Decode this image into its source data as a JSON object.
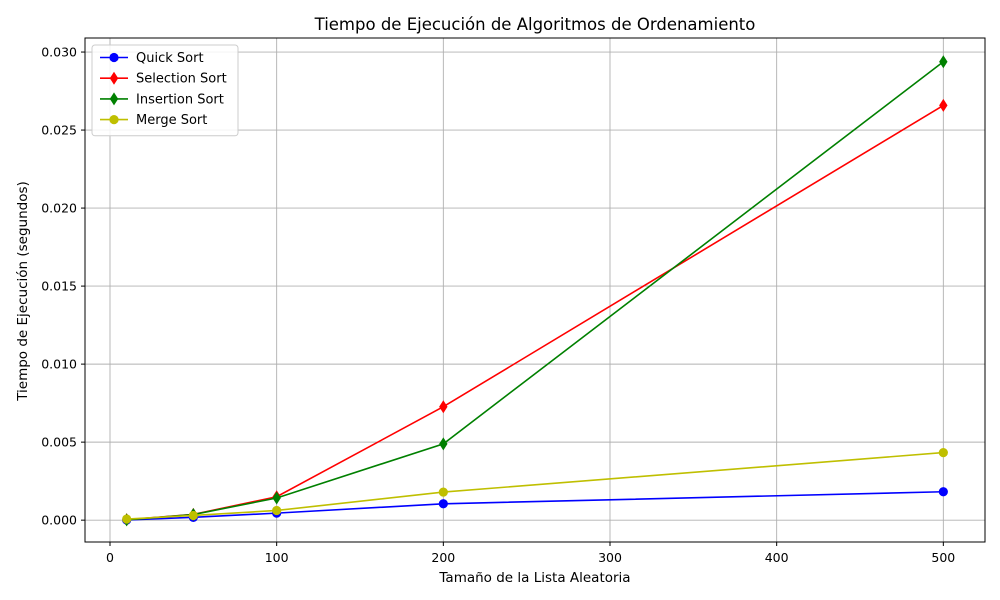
{
  "chart_data": {
    "type": "line",
    "title": "Tiempo de Ejecución de Algoritmos de Ordenamiento",
    "xlabel": "Tamaño de la Lista Aleatoria",
    "ylabel": "Tiempo de Ejecución (segundos)",
    "xlim": [
      -15,
      525
    ],
    "ylim": [
      -0.0014,
      0.0309
    ],
    "xticks": [
      0,
      100,
      200,
      300,
      400,
      500
    ],
    "yticks": [
      0.0,
      0.005,
      0.01,
      0.015,
      0.02,
      0.025,
      0.03
    ],
    "ytick_labels": [
      "0.000",
      "0.005",
      "0.010",
      "0.015",
      "0.020",
      "0.025",
      "0.030"
    ],
    "grid": true,
    "legend_position": "top-left",
    "x": [
      10,
      50,
      100,
      200,
      500
    ],
    "series": [
      {
        "name": "Quick Sort",
        "color": "#0000ff",
        "marker": "circle",
        "values": [
          1e-05,
          0.00018,
          0.00045,
          0.00105,
          0.00182
        ]
      },
      {
        "name": "Selection Sort",
        "color": "#ff0000",
        "marker": "diamond",
        "values": [
          3e-05,
          0.00037,
          0.0015,
          0.00727,
          0.02658
        ]
      },
      {
        "name": "Insertion Sort",
        "color": "#008000",
        "marker": "diamond",
        "values": [
          2e-05,
          0.00036,
          0.00142,
          0.00489,
          0.02938
        ]
      },
      {
        "name": "Merge Sort",
        "color": "#bfbf00",
        "marker": "circle",
        "values": [
          7e-05,
          0.0003,
          0.00062,
          0.0018,
          0.00433
        ]
      }
    ]
  }
}
